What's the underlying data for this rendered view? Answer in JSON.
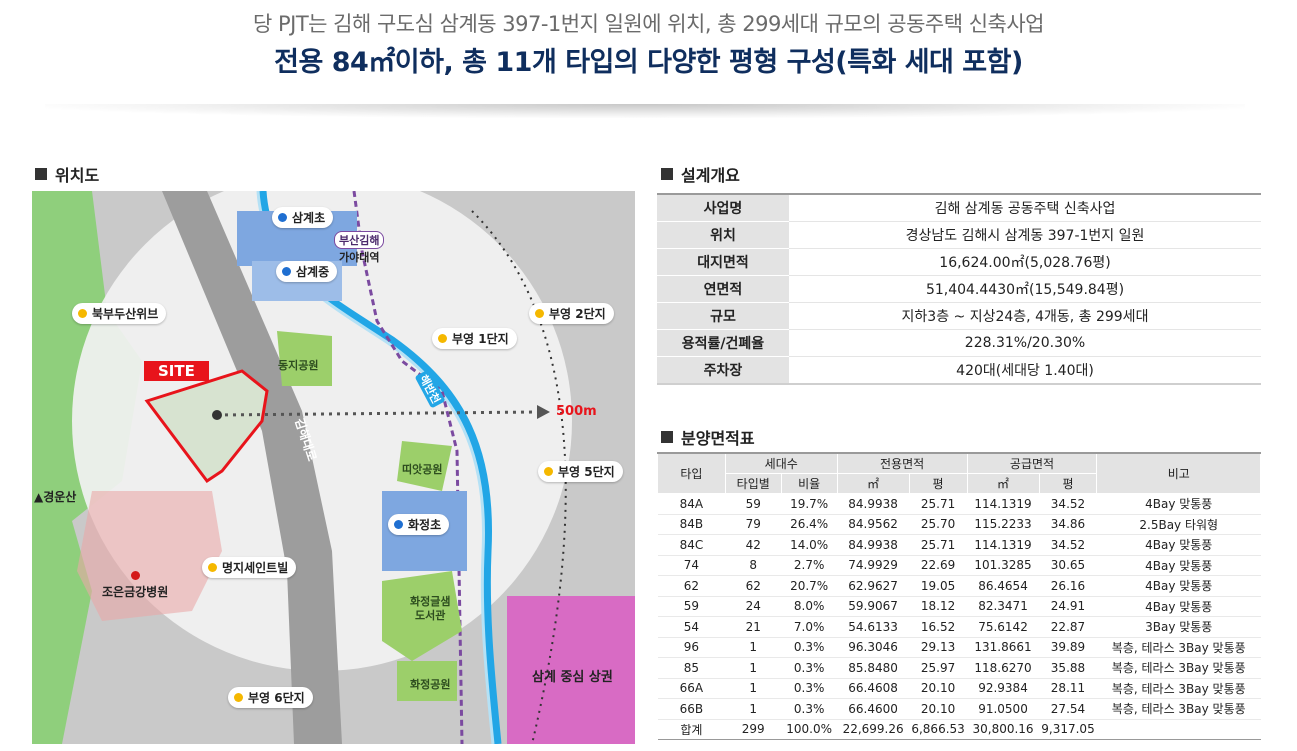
{
  "header": {
    "subtitle": "당 PJT는 김해 구도심 삼계동 397-1번지 일원에 위치, 총 299세대 규모의 공동주택 신축사업",
    "title": "전용 84㎡이하, 총 11개 타입의 다양한 평형 구성(특화 세대 포함)"
  },
  "sections": {
    "location": "위치도",
    "overview": "설계개요",
    "area": "분양면적표"
  },
  "map": {
    "site_label": "SITE",
    "distance_label": "500m",
    "schools": [
      "삼계초",
      "삼계중",
      "화정초"
    ],
    "apartments": [
      "북부두산위브",
      "부영 2단지",
      "부영 1단지",
      "부영 5단지",
      "명지세인트빌",
      "부영 6단지"
    ],
    "parks": [
      "동지공원",
      "띠앗공원",
      "화정공원"
    ],
    "library": [
      "화정글샘",
      "도서관"
    ],
    "hospital": "조은금강병원",
    "mountain": "▲경운산",
    "commercial": "삼계 중심 상권",
    "station_line": "부산김해",
    "station_name": "가야대역",
    "road_label": "김해대로",
    "river_label": "해반천",
    "colors": {
      "circle": "#f4f4f4",
      "park": "#9ccf6a",
      "school": "#7ea7e0",
      "commercial": "#d86bc4",
      "site": "#e8141b",
      "river": "#22a6e6"
    }
  },
  "overview": [
    {
      "key": "사업명",
      "value": "김해 삼계동 공동주택 신축사업"
    },
    {
      "key": "위치",
      "value": "경상남도 김해시 삼계동 397-1번지 일원"
    },
    {
      "key": "대지면적",
      "value": "16,624.00㎡(5,028.76평)"
    },
    {
      "key": "연면적",
      "value": "51,404.4430㎡(15,549.84평)"
    },
    {
      "key": "규모",
      "value": "지하3층 ~ 지상24층, 4개동, 총 299세대"
    },
    {
      "key": "용적률/건폐율",
      "value": "228.31%/20.30%"
    },
    {
      "key": "주차장",
      "value": "420대(세대당 1.40대)"
    }
  ],
  "area_table": {
    "headers": {
      "type": "타입",
      "units": "세대수",
      "units_count": "타입별",
      "units_ratio": "비율",
      "exclusive": "전용면적",
      "supply": "공급면적",
      "sqm": "㎡",
      "pyeong": "평",
      "note": "비고"
    },
    "rows": [
      [
        "84A",
        "59",
        "19.7%",
        "84.9938",
        "25.71",
        "114.1319",
        "34.52",
        "4Bay 맞통풍"
      ],
      [
        "84B",
        "79",
        "26.4%",
        "84.9562",
        "25.70",
        "115.2233",
        "34.86",
        "2.5Bay 타워형"
      ],
      [
        "84C",
        "42",
        "14.0%",
        "84.9938",
        "25.71",
        "114.1319",
        "34.52",
        "4Bay 맞통풍"
      ],
      [
        "74",
        "8",
        "2.7%",
        "74.9929",
        "22.69",
        "101.3285",
        "30.65",
        "4Bay 맞통풍"
      ],
      [
        "62",
        "62",
        "20.7%",
        "62.9627",
        "19.05",
        "86.4654",
        "26.16",
        "4Bay 맞통풍"
      ],
      [
        "59",
        "24",
        "8.0%",
        "59.9067",
        "18.12",
        "82.3471",
        "24.91",
        "4Bay 맞통풍"
      ],
      [
        "54",
        "21",
        "7.0%",
        "54.6133",
        "16.52",
        "75.6142",
        "22.87",
        "3Bay 맞통풍"
      ],
      [
        "96",
        "1",
        "0.3%",
        "96.3046",
        "29.13",
        "131.8661",
        "39.89",
        "복층, 테라스 3Bay 맞통풍"
      ],
      [
        "85",
        "1",
        "0.3%",
        "85.8480",
        "25.97",
        "118.6270",
        "35.88",
        "복층, 테라스 3Bay 맞통풍"
      ],
      [
        "66A",
        "1",
        "0.3%",
        "66.4608",
        "20.10",
        "92.9384",
        "28.11",
        "복층, 테라스 3Bay 맞통풍"
      ],
      [
        "66B",
        "1",
        "0.3%",
        "66.4600",
        "20.10",
        "91.0500",
        "27.54",
        "복층, 테라스 3Bay 맞통풍"
      ]
    ],
    "total": [
      "합계",
      "299",
      "100.0%",
      "22,699.26",
      "6,866.53",
      "30,800.16",
      "9,317.05",
      ""
    ]
  }
}
